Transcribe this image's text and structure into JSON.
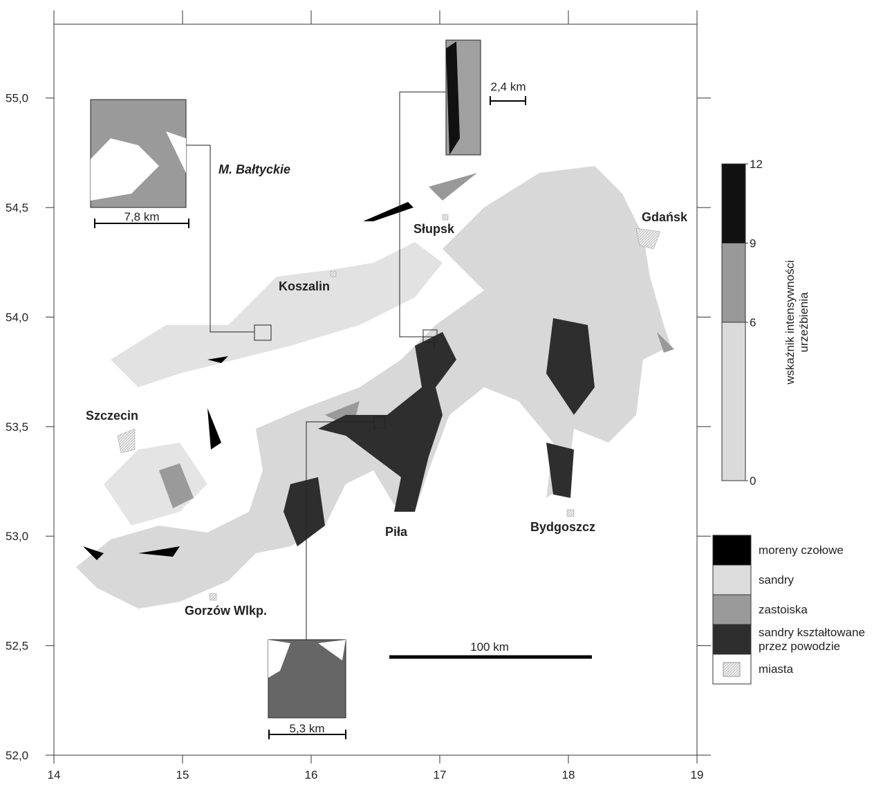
{
  "map": {
    "sea_label": "M. Bałtyckie",
    "x_axis": {
      "lim": [
        14,
        19.0
      ],
      "ticks": [
        14,
        15,
        16,
        17,
        18,
        19
      ]
    },
    "y_axis": {
      "lim": [
        52,
        55.337
      ],
      "ticks": [
        {
          "value": 52,
          "label": "52,0"
        },
        {
          "value": 52.5,
          "label": "52,5"
        },
        {
          "value": 53,
          "label": "53,0"
        },
        {
          "value": 53.5,
          "label": "53,5"
        },
        {
          "value": 54,
          "label": "54,0"
        },
        {
          "value": 54.5,
          "label": "54,5"
        },
        {
          "value": 55,
          "label": "55,0"
        }
      ]
    },
    "cities": [
      "Gdańsk",
      "Słupsk",
      "Koszalin",
      "Szczecin",
      "Piła",
      "Bydgoszcz",
      "Gorzów Wlkp."
    ],
    "scale_bar": "100 km",
    "insets": [
      "7,8 km",
      "2,4 km",
      "5,3 km"
    ]
  },
  "colorbar": {
    "title": [
      "wskaźnik intensywności",
      "urzeźbienia"
    ],
    "ticks": [
      0,
      6,
      9,
      12
    ],
    "colors": [
      "#dadada",
      "#999999",
      "#111111"
    ]
  },
  "legend": [
    {
      "label": [
        "moreny czołowe"
      ],
      "color": "#000000"
    },
    {
      "label": [
        "sandry"
      ],
      "color": "#dcdcdc"
    },
    {
      "label": [
        "zastoiska"
      ],
      "color": "#9a9a9a"
    },
    {
      "label": [
        "sandry kształtowane",
        "przez powodzie"
      ],
      "color": "#2e2e2e"
    },
    {
      "label": [
        "miasta"
      ],
      "color": "#ececec"
    }
  ]
}
